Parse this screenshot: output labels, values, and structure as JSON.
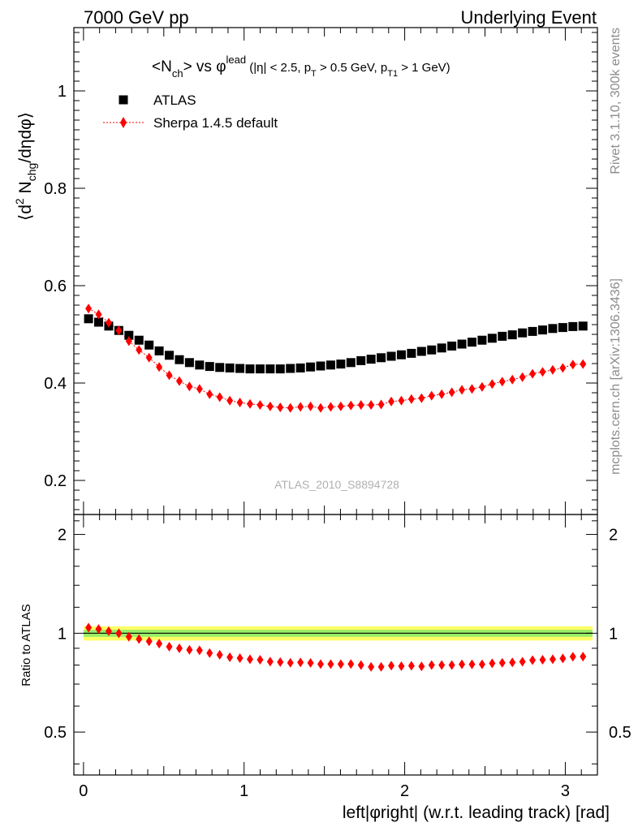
{
  "header": {
    "left": "7000 GeV pp",
    "right": "Underlying Event"
  },
  "side": {
    "top": "Rivet 3.1.10,  300k events",
    "bottom": "mcplots.cern.ch [arXiv:1306.3436]"
  },
  "watermark": "ATLAS_2010_S8894728",
  "plot_title": {
    "main": "<N",
    "main_sub": "ch",
    "mid": "> vs ",
    "phi": "φ",
    "phi_sup": "lead",
    "cuts_a": " (|η| < 2.5, p",
    "cuts_a_sub": "T",
    "cuts_b": " > 0.5 GeV, p",
    "cuts_b_sub": "T1",
    "cuts_c": " > 1 GeV)"
  },
  "colors": {
    "data": "#000000",
    "mc": "#ff0000",
    "band_outer": "#ffff66",
    "band_inner": "#99ee66"
  },
  "chart_data": [
    {
      "type": "scatter",
      "ylabel": "⟨d² N_chg/dηdφ⟩",
      "ylim": [
        0.13,
        1.13
      ],
      "xlim": [
        -0.06,
        3.2
      ],
      "y_ticks": [
        "0.2",
        "0.4",
        "0.6",
        "0.8",
        "1"
      ],
      "legend_position": "top-left",
      "x": [
        0.0314,
        0.0942,
        0.1571,
        0.2199,
        0.2827,
        0.3456,
        0.4084,
        0.4712,
        0.5341,
        0.5969,
        0.6597,
        0.7226,
        0.7854,
        0.8482,
        0.9111,
        0.9739,
        1.0367,
        1.0996,
        1.1624,
        1.2252,
        1.2881,
        1.3509,
        1.4137,
        1.4765,
        1.5394,
        1.6022,
        1.665,
        1.7279,
        1.7907,
        1.8535,
        1.9164,
        1.9792,
        2.042,
        2.1049,
        2.1677,
        2.2305,
        2.2934,
        2.3562,
        2.419,
        2.4819,
        2.5447,
        2.6075,
        2.6704,
        2.7332,
        2.796,
        2.8588,
        2.9217,
        2.9845,
        3.0473,
        3.1102
      ],
      "series": [
        {
          "name": "ATLAS",
          "marker": "square",
          "values": [
            0.532,
            0.525,
            0.517,
            0.508,
            0.498,
            0.488,
            0.478,
            0.466,
            0.457,
            0.448,
            0.442,
            0.437,
            0.434,
            0.432,
            0.431,
            0.43,
            0.429,
            0.429,
            0.429,
            0.429,
            0.43,
            0.431,
            0.433,
            0.435,
            0.437,
            0.439,
            0.442,
            0.446,
            0.449,
            0.452,
            0.455,
            0.458,
            0.461,
            0.465,
            0.468,
            0.472,
            0.476,
            0.48,
            0.484,
            0.488,
            0.492,
            0.496,
            0.499,
            0.503,
            0.506,
            0.509,
            0.512,
            0.514,
            0.516,
            0.517
          ]
        },
        {
          "name": "Sherpa 1.4.5 default",
          "marker": "diamond",
          "line": "dotted",
          "values": [
            0.553,
            0.541,
            0.524,
            0.508,
            0.486,
            0.468,
            0.452,
            0.433,
            0.416,
            0.404,
            0.393,
            0.388,
            0.377,
            0.371,
            0.364,
            0.36,
            0.357,
            0.355,
            0.352,
            0.35,
            0.349,
            0.351,
            0.352,
            0.349,
            0.351,
            0.352,
            0.354,
            0.355,
            0.355,
            0.356,
            0.362,
            0.364,
            0.367,
            0.369,
            0.374,
            0.377,
            0.381,
            0.386,
            0.388,
            0.392,
            0.398,
            0.403,
            0.407,
            0.412,
            0.419,
            0.423,
            0.427,
            0.431,
            0.438,
            0.439
          ]
        }
      ]
    },
    {
      "type": "scatter",
      "ylabel": "Ratio to ATLAS",
      "xlabel": "left|φright| (w.r.t. leading track) [rad]",
      "ylim": [
        0.37,
        2.3
      ],
      "xlim": [
        -0.06,
        3.2
      ],
      "y_ticks": [
        "0.5",
        "1",
        "2"
      ],
      "x_ticks": [
        "0",
        "1",
        "2",
        "3"
      ],
      "reference_line": 1,
      "band_outer": [
        0.95,
        1.05
      ],
      "band_inner": [
        0.975,
        1.025
      ],
      "series": [
        {
          "name": "Sherpa 1.4.5 default",
          "marker": "diamond",
          "values": [
            1.04,
            1.03,
            1.015,
            1.0,
            0.976,
            0.96,
            0.945,
            0.93,
            0.91,
            0.9,
            0.89,
            0.887,
            0.87,
            0.86,
            0.845,
            0.84,
            0.833,
            0.83,
            0.82,
            0.817,
            0.813,
            0.815,
            0.812,
            0.805,
            0.805,
            0.805,
            0.806,
            0.8,
            0.79,
            0.79,
            0.797,
            0.794,
            0.796,
            0.793,
            0.8,
            0.8,
            0.8,
            0.804,
            0.804,
            0.804,
            0.81,
            0.813,
            0.815,
            0.819,
            0.828,
            0.83,
            0.833,
            0.838,
            0.848,
            0.849
          ]
        }
      ]
    }
  ]
}
